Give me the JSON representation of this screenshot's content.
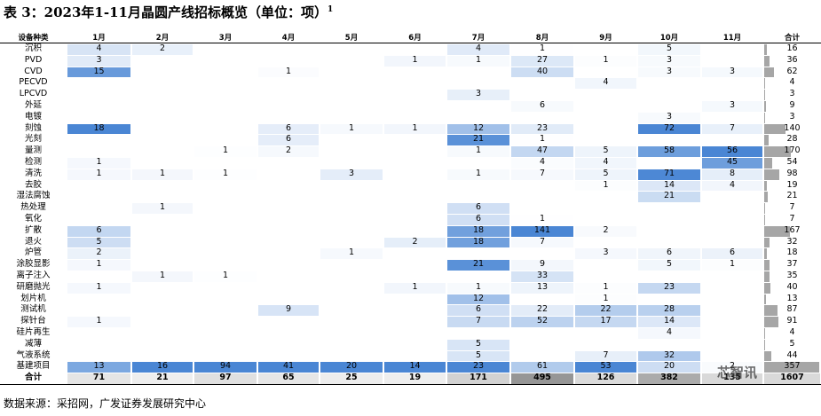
{
  "title": "表 3：2023年1-11月晶圆产线招标概览（单位：项）",
  "title_note": "1",
  "table": {
    "columns": [
      "设备种类",
      "1月",
      "2月",
      "3月",
      "4月",
      "5月",
      "6月",
      "7月",
      "8月",
      "9月",
      "10月",
      "11月",
      "合计"
    ],
    "rows": [
      {
        "name": "沉积",
        "values": [
          4,
          2,
          null,
          null,
          null,
          null,
          4,
          1,
          null,
          5,
          null
        ],
        "total": 16
      },
      {
        "name": "PVD",
        "values": [
          3,
          null,
          null,
          null,
          null,
          1,
          1,
          27,
          1,
          3,
          null
        ],
        "total": 36
      },
      {
        "name": "CVD",
        "values": [
          15,
          null,
          null,
          1,
          null,
          null,
          null,
          40,
          null,
          3,
          3
        ],
        "total": 62
      },
      {
        "name": "PECVD",
        "values": [
          null,
          null,
          null,
          null,
          null,
          null,
          null,
          null,
          4,
          null,
          null
        ],
        "total": 4
      },
      {
        "name": "LPCVD",
        "values": [
          null,
          null,
          null,
          null,
          null,
          null,
          3,
          null,
          null,
          null,
          null
        ],
        "total": 3
      },
      {
        "name": "外延",
        "values": [
          null,
          null,
          null,
          null,
          null,
          null,
          null,
          6,
          null,
          null,
          3
        ],
        "total": 9
      },
      {
        "name": "电镀",
        "values": [
          null,
          null,
          null,
          null,
          null,
          null,
          null,
          null,
          null,
          3,
          null
        ],
        "total": 3
      },
      {
        "name": "刻蚀",
        "values": [
          18,
          null,
          null,
          6,
          1,
          1,
          12,
          23,
          null,
          72,
          7
        ],
        "total": 140
      },
      {
        "name": "光刻",
        "values": [
          null,
          null,
          null,
          6,
          null,
          null,
          21,
          1,
          null,
          null,
          null
        ],
        "total": 28
      },
      {
        "name": "量测",
        "values": [
          null,
          null,
          1,
          2,
          null,
          null,
          1,
          47,
          5,
          58,
          56
        ],
        "total": 170
      },
      {
        "name": "检测",
        "values": [
          1,
          null,
          null,
          null,
          null,
          null,
          null,
          4,
          4,
          null,
          45
        ],
        "total": 54
      },
      {
        "name": "清洗",
        "values": [
          1,
          1,
          1,
          null,
          3,
          null,
          1,
          7,
          5,
          71,
          8
        ],
        "total": 98
      },
      {
        "name": "去胶",
        "values": [
          null,
          null,
          null,
          null,
          null,
          null,
          null,
          null,
          1,
          14,
          4
        ],
        "total": 19
      },
      {
        "name": "湿法腐蚀",
        "values": [
          null,
          null,
          null,
          null,
          null,
          null,
          null,
          null,
          null,
          21,
          null
        ],
        "total": 21
      },
      {
        "name": "热处理",
        "values": [
          null,
          1,
          null,
          null,
          null,
          null,
          6,
          null,
          null,
          null,
          null
        ],
        "total": 7
      },
      {
        "name": "氧化",
        "values": [
          null,
          null,
          null,
          null,
          null,
          null,
          6,
          1,
          null,
          null,
          null
        ],
        "total": 7
      },
      {
        "name": "扩散",
        "values": [
          6,
          null,
          null,
          null,
          null,
          null,
          18,
          141,
          2,
          null,
          null
        ],
        "total": 167
      },
      {
        "name": "退火",
        "values": [
          5,
          null,
          null,
          null,
          null,
          2,
          18,
          7,
          null,
          null,
          null
        ],
        "total": 32
      },
      {
        "name": "炉管",
        "values": [
          2,
          null,
          null,
          null,
          1,
          null,
          null,
          null,
          3,
          6,
          6
        ],
        "total": 18
      },
      {
        "name": "涂胶显影",
        "values": [
          1,
          null,
          null,
          null,
          null,
          null,
          21,
          9,
          null,
          5,
          1
        ],
        "total": 37
      },
      {
        "name": "离子注入",
        "values": [
          null,
          1,
          1,
          null,
          null,
          null,
          null,
          33,
          null,
          null,
          null
        ],
        "total": 35
      },
      {
        "name": "研磨抛光",
        "values": [
          1,
          null,
          null,
          null,
          null,
          1,
          1,
          13,
          1,
          23,
          null
        ],
        "total": 40
      },
      {
        "name": "划片机",
        "values": [
          null,
          null,
          null,
          null,
          null,
          null,
          12,
          null,
          1,
          null,
          null
        ],
        "total": 13
      },
      {
        "name": "测试机",
        "values": [
          null,
          null,
          null,
          9,
          null,
          null,
          6,
          22,
          22,
          28,
          null
        ],
        "total": 87
      },
      {
        "name": "探针台",
        "values": [
          1,
          null,
          null,
          null,
          null,
          null,
          7,
          52,
          17,
          14,
          null
        ],
        "total": 91
      },
      {
        "name": "硅片再生",
        "values": [
          null,
          null,
          null,
          null,
          null,
          null,
          null,
          null,
          null,
          4,
          null
        ],
        "total": 4
      },
      {
        "name": "减薄",
        "values": [
          null,
          null,
          null,
          null,
          null,
          null,
          5,
          null,
          null,
          null,
          null
        ],
        "total": 5
      },
      {
        "name": "气液系统",
        "values": [
          null,
          null,
          null,
          null,
          null,
          null,
          5,
          null,
          7,
          32,
          null
        ],
        "total": 44
      },
      {
        "name": "基建项目",
        "values": [
          13,
          16,
          94,
          41,
          20,
          14,
          23,
          61,
          53,
          20,
          2
        ],
        "total": 357
      }
    ],
    "sum_row": {
      "name": "合计",
      "values": [
        71,
        21,
        97,
        65,
        25,
        19,
        171,
        495,
        126,
        382,
        135
      ],
      "total": 1607
    }
  },
  "source": "数据来源：采招网，广发证券发展研究中心",
  "watermark": "芯智讯"
}
